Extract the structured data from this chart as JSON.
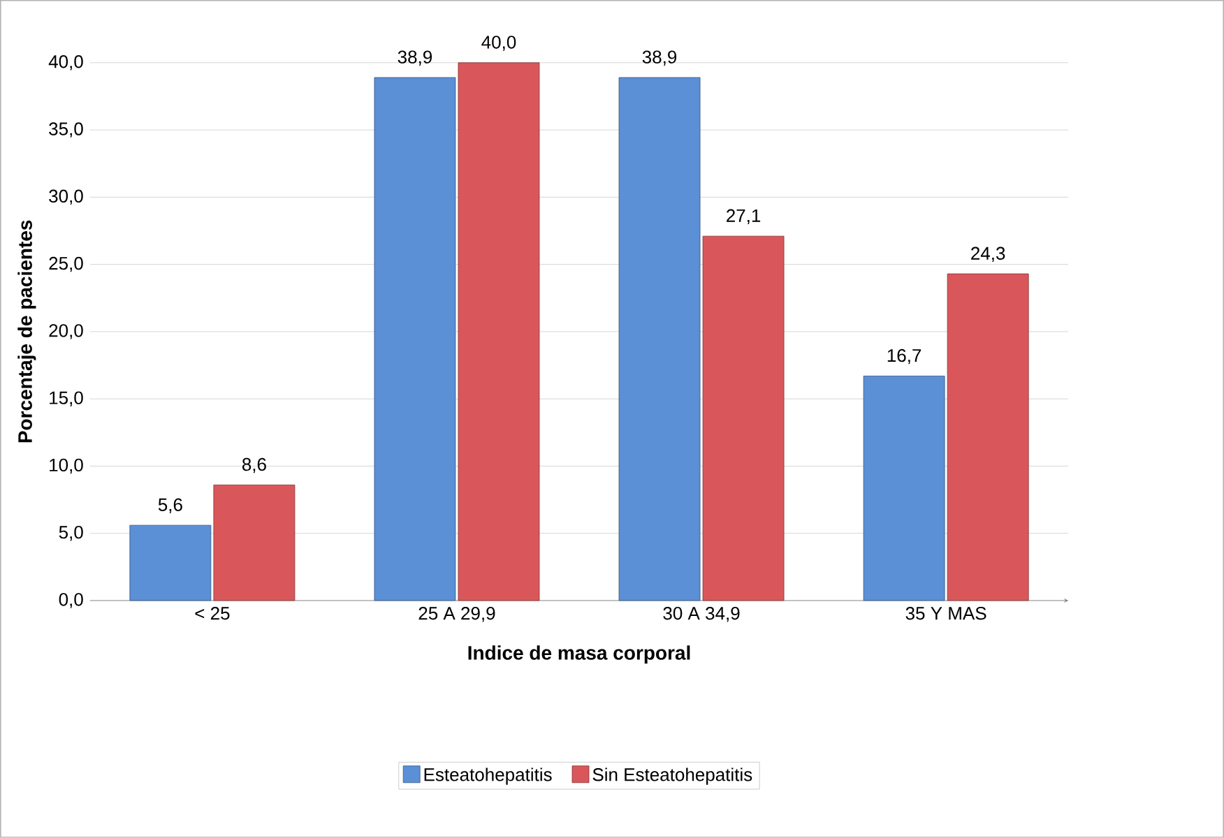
{
  "chart_data": {
    "type": "bar",
    "xlabel": "Indice de masa corporal",
    "ylabel": "Porcentaje de pacientes",
    "categories": [
      "< 25",
      "25 A 29,9",
      "30 A 34,9",
      "35 Y MAS"
    ],
    "series": [
      {
        "name": "Esteatohepatitis",
        "color": "#5b8fd6",
        "values": [
          5.6,
          38.9,
          38.9,
          16.7
        ],
        "value_labels": [
          "5,6",
          "38,9",
          "38,9",
          "16,7"
        ]
      },
      {
        "name": "Sin Esteatohepatitis",
        "color": "#d9575a",
        "values": [
          8.6,
          40.0,
          27.1,
          24.3
        ],
        "value_labels": [
          "8,6",
          "40,0",
          "27,1",
          "24,3"
        ]
      }
    ],
    "ylim": [
      0,
      40
    ],
    "yticks": [
      {
        "value": 0,
        "label": "0,0"
      },
      {
        "value": 5,
        "label": "5,0"
      },
      {
        "value": 10,
        "label": "10,0"
      },
      {
        "value": 15,
        "label": "15,0"
      },
      {
        "value": 20,
        "label": "20,0"
      },
      {
        "value": 25,
        "label": "25,0"
      },
      {
        "value": 30,
        "label": "30,0"
      },
      {
        "value": 35,
        "label": "35,0"
      },
      {
        "value": 40,
        "label": "40,0"
      }
    ],
    "grid": "y",
    "legend": "bottom"
  }
}
